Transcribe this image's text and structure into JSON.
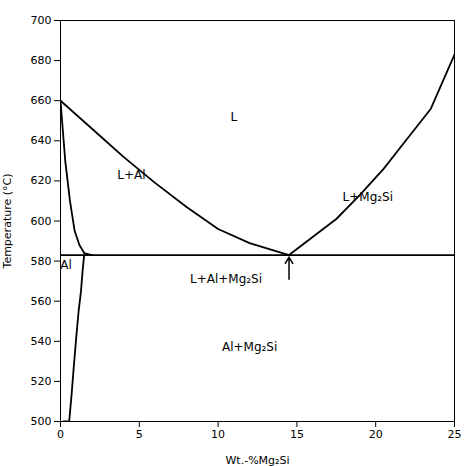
{
  "chart_data": {
    "type": "line",
    "xlabel": "Wt.-%Mg₂Si",
    "ylabel": "Temperature (°C)",
    "xlim": [
      0,
      25
    ],
    "ylim": [
      500,
      700
    ],
    "xticks": [
      0,
      5,
      10,
      15,
      20,
      25
    ],
    "yticks": [
      500,
      520,
      540,
      560,
      580,
      600,
      620,
      640,
      660,
      680,
      700
    ],
    "grid": false,
    "series": [
      {
        "color": "#000000",
        "x": [
          0.0,
          25.0
        ],
        "values": [
          583,
          583
        ]
      },
      {
        "color": "#000000",
        "x": [
          0.0,
          2.0,
          4.0,
          6.0,
          8.0,
          10.0,
          12.0,
          14.5
        ],
        "values": [
          660,
          646,
          632,
          619,
          607,
          596,
          589,
          583
        ]
      },
      {
        "color": "#000000",
        "x": [
          14.5,
          16.0,
          17.5,
          19.0,
          20.5,
          22.0,
          23.5,
          25.0
        ],
        "values": [
          583,
          592,
          601,
          613,
          626,
          641,
          656,
          683
        ]
      },
      {
        "color": "#000000",
        "x": [
          0.0,
          0.3,
          0.6,
          0.9,
          1.2,
          1.5,
          2.0
        ],
        "values": [
          660,
          630,
          610,
          595,
          588,
          584,
          583
        ]
      },
      {
        "color": "#000000",
        "x": [
          1.5,
          1.4,
          1.3,
          1.15,
          1.0,
          0.85,
          0.7,
          0.55,
          0.4,
          0.3,
          0.22,
          0.18
        ],
        "values": [
          583,
          575,
          565,
          555,
          542,
          528,
          513,
          500,
          500,
          500,
          500,
          500
        ]
      }
    ],
    "annotations": [
      {
        "text": "L",
        "x": 11,
        "y": 652
      },
      {
        "text": "L+Al",
        "x": 4.5,
        "y": 623
      },
      {
        "text": "L+Mg₂Si",
        "x": 19.5,
        "y": 612
      },
      {
        "text": "Al",
        "x": 0.35,
        "y": 578
      },
      {
        "text": "Al+Mg₂Si",
        "x": 12,
        "y": 537
      },
      {
        "text": "L+Al+Mg₂Si",
        "x": 10.5,
        "y": 571
      }
    ],
    "arrows": [
      {
        "x1": 14.5,
        "y1": 571,
        "x2": 14.5,
        "y2": 582,
        "color": "#000000"
      }
    ]
  }
}
